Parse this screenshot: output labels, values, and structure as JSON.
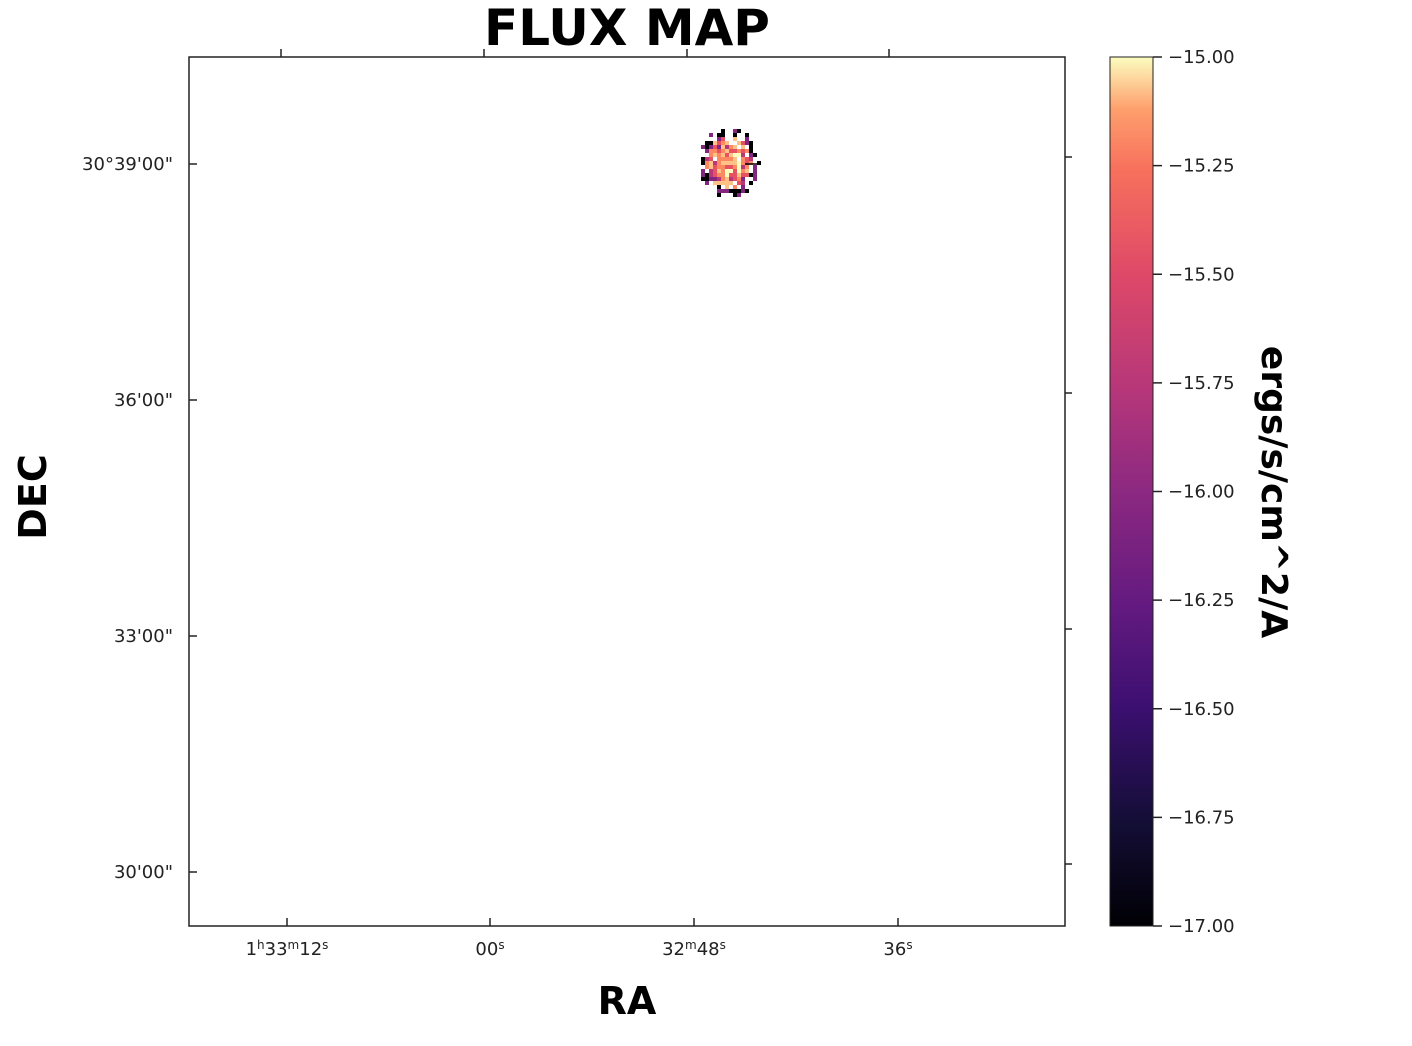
{
  "chart_data": {
    "type": "heatmap",
    "title": "FLUX MAP",
    "xlabel": "RA",
    "ylabel": "DEC",
    "x_ticks": [
      {
        "h": "1",
        "m": "33",
        "s": "12",
        "parts": [
          [
            "1",
            "norm"
          ],
          [
            "h",
            "sup"
          ],
          [
            "33",
            "norm"
          ],
          [
            "m",
            "sup"
          ],
          [
            "12",
            "norm"
          ],
          [
            "s",
            "sup"
          ]
        ]
      },
      {
        "h": "",
        "m": "",
        "s": "00",
        "parts": [
          [
            "00",
            "norm"
          ],
          [
            "s",
            "sup"
          ]
        ]
      },
      {
        "h": "",
        "m": "32",
        "s": "48",
        "parts": [
          [
            "32",
            "norm"
          ],
          [
            "m",
            "sup"
          ],
          [
            "48",
            "norm"
          ],
          [
            "s",
            "sup"
          ]
        ]
      },
      {
        "h": "",
        "m": "",
        "s": "36",
        "parts": [
          [
            "36",
            "norm"
          ],
          [
            "s",
            "sup"
          ]
        ]
      }
    ],
    "y_ticks": [
      "30°39'00\"",
      "36'00\"",
      "33'00\"",
      "30'00\""
    ],
    "colorbar": {
      "label": "ergs/s/cm^2/A",
      "colormap": "magma",
      "range": [
        -17.0,
        -15.0
      ],
      "ticks": [
        "−15.00",
        "−15.25",
        "−15.50",
        "−15.75",
        "−16.00",
        "−16.25",
        "−16.50",
        "−16.75",
        "−17.00"
      ]
    },
    "grid": false,
    "source_blob": {
      "description_value_range": [
        -17.0,
        -15.0
      ],
      "peak_value": -15.2
    }
  }
}
